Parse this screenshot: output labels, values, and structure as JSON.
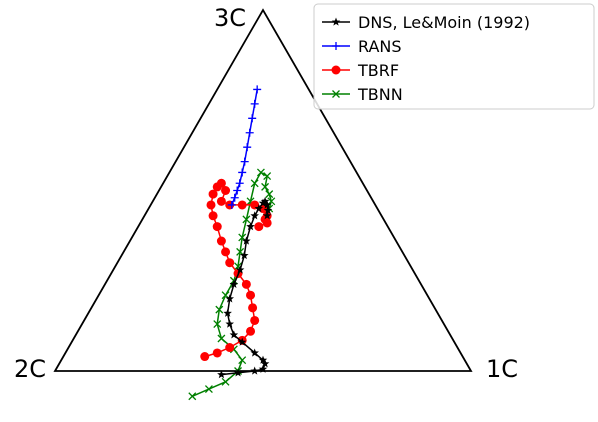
{
  "chart_data": {
    "type": "line",
    "title": "",
    "legend_placement": "top-right",
    "vertices": {
      "top": "3C",
      "left": "2C",
      "right": "1C"
    },
    "series": [
      {
        "name": "DNS, Le&Moin (1992)",
        "color": "#000000",
        "marker": "star",
        "points": [
          [
            0.4,
            -0.01
          ],
          [
            0.44,
            -0.005
          ],
          [
            0.48,
            0.0
          ],
          [
            0.5,
            0.005
          ],
          [
            0.505,
            0.02
          ],
          [
            0.5,
            0.03
          ],
          [
            0.48,
            0.05
          ],
          [
            0.45,
            0.08
          ],
          [
            0.43,
            0.1
          ],
          [
            0.42,
            0.13
          ],
          [
            0.415,
            0.16
          ],
          [
            0.42,
            0.2
          ],
          [
            0.43,
            0.24
          ],
          [
            0.445,
            0.28
          ],
          [
            0.455,
            0.32
          ],
          [
            0.46,
            0.36
          ],
          [
            0.47,
            0.4
          ],
          [
            0.48,
            0.43
          ],
          [
            0.49,
            0.45
          ],
          [
            0.5,
            0.465
          ],
          [
            0.505,
            0.47
          ],
          [
            0.51,
            0.46
          ],
          [
            0.512,
            0.445
          ],
          [
            0.51,
            0.43
          ]
        ]
      },
      {
        "name": "RANS",
        "color": "#0000ff",
        "marker": "plus",
        "points": [
          [
            0.425,
            0.46
          ],
          [
            0.432,
            0.48
          ],
          [
            0.438,
            0.5
          ],
          [
            0.444,
            0.52
          ],
          [
            0.45,
            0.55
          ],
          [
            0.456,
            0.58
          ],
          [
            0.462,
            0.62
          ],
          [
            0.468,
            0.66
          ],
          [
            0.474,
            0.7
          ],
          [
            0.48,
            0.74
          ],
          [
            0.486,
            0.78
          ]
        ]
      },
      {
        "name": "TBRF",
        "color": "#ff0000",
        "marker": "circle",
        "points": [
          [
            0.36,
            0.04
          ],
          [
            0.39,
            0.05
          ],
          [
            0.42,
            0.065
          ],
          [
            0.45,
            0.085
          ],
          [
            0.47,
            0.11
          ],
          [
            0.48,
            0.14
          ],
          [
            0.475,
            0.175
          ],
          [
            0.47,
            0.21
          ],
          [
            0.46,
            0.24
          ],
          [
            0.44,
            0.27
          ],
          [
            0.42,
            0.3
          ],
          [
            0.41,
            0.33
          ],
          [
            0.4,
            0.36
          ],
          [
            0.39,
            0.4
          ],
          [
            0.38,
            0.43
          ],
          [
            0.375,
            0.46
          ],
          [
            0.38,
            0.49
          ],
          [
            0.39,
            0.51
          ],
          [
            0.4,
            0.52
          ],
          [
            0.41,
            0.5
          ],
          [
            0.4,
            0.47
          ],
          [
            0.42,
            0.46
          ],
          [
            0.45,
            0.46
          ],
          [
            0.48,
            0.46
          ],
          [
            0.5,
            0.45
          ],
          [
            0.51,
            0.43
          ],
          [
            0.505,
            0.42
          ],
          [
            0.51,
            0.41
          ],
          [
            0.49,
            0.4
          ]
        ]
      },
      {
        "name": "TBNN",
        "color": "#008000",
        "marker": "x",
        "points": [
          [
            0.33,
            -0.07
          ],
          [
            0.37,
            -0.05
          ],
          [
            0.41,
            -0.03
          ],
          [
            0.44,
            0.0
          ],
          [
            0.45,
            0.03
          ],
          [
            0.43,
            0.06
          ],
          [
            0.4,
            0.09
          ],
          [
            0.39,
            0.13
          ],
          [
            0.395,
            0.17
          ],
          [
            0.41,
            0.21
          ],
          [
            0.43,
            0.25
          ],
          [
            0.44,
            0.29
          ],
          [
            0.445,
            0.33
          ],
          [
            0.45,
            0.37
          ],
          [
            0.46,
            0.42
          ],
          [
            0.47,
            0.47
          ],
          [
            0.48,
            0.52
          ],
          [
            0.495,
            0.55
          ],
          [
            0.51,
            0.54
          ],
          [
            0.505,
            0.51
          ],
          [
            0.515,
            0.49
          ],
          [
            0.52,
            0.47
          ],
          [
            0.515,
            0.45
          ]
        ]
      }
    ]
  }
}
